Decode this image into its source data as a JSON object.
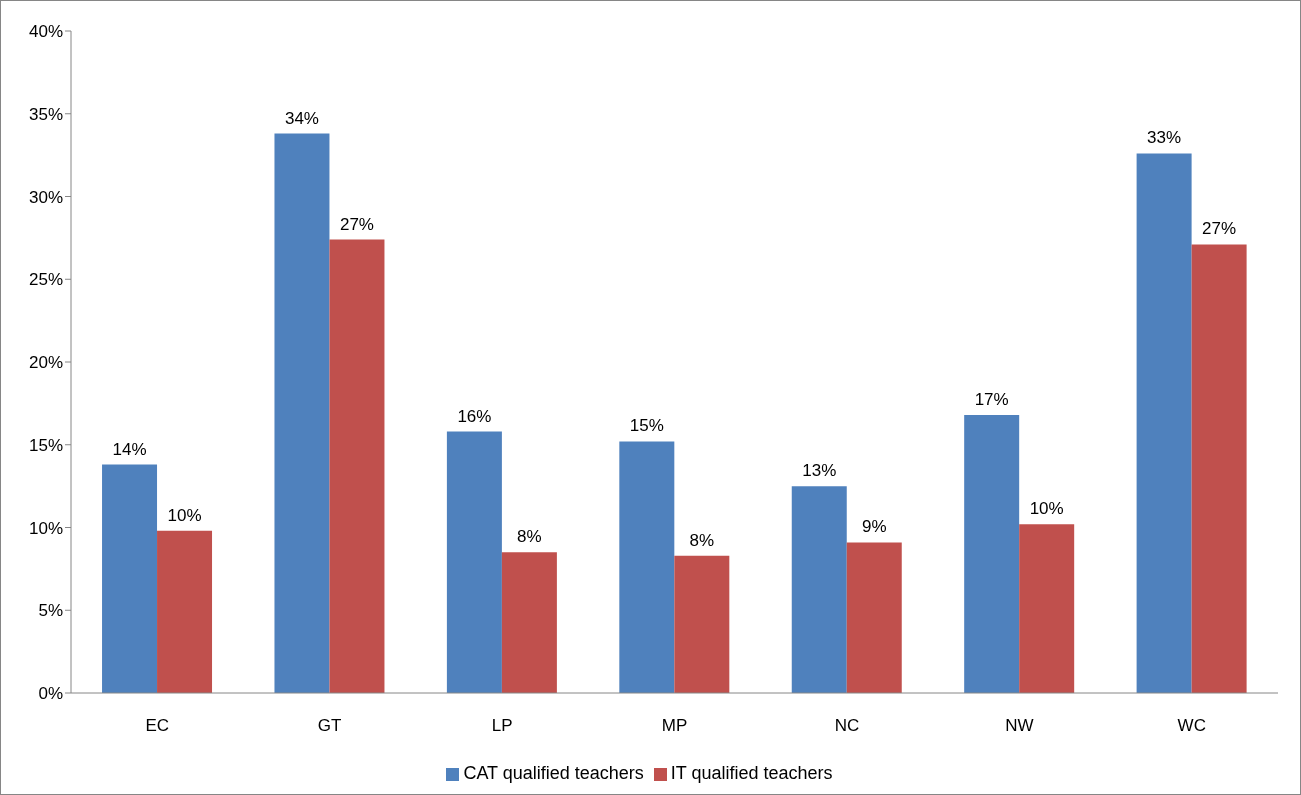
{
  "chart_data": {
    "type": "bar",
    "categories": [
      "EC",
      "GT",
      "LP",
      "MP",
      "NC",
      "NW",
      "WC"
    ],
    "series": [
      {
        "name": "CAT qualified teachers",
        "color": "#4f81bd",
        "values": [
          13.8,
          33.8,
          15.8,
          15.2,
          12.5,
          16.8,
          32.6
        ],
        "value_labels": [
          "14%",
          "34%",
          "16%",
          "15%",
          "13%",
          "17%",
          "33%"
        ]
      },
      {
        "name": "IT qualified teachers",
        "color": "#c0504d",
        "values": [
          9.8,
          27.4,
          8.5,
          8.3,
          9.1,
          10.2,
          27.1
        ],
        "value_labels": [
          "10%",
          "27%",
          "8%",
          "8%",
          "9%",
          "10%",
          "27%"
        ]
      }
    ],
    "ylim": [
      0,
      40
    ],
    "yticks": [
      {
        "value": 0,
        "label": "0%"
      },
      {
        "value": 5,
        "label": "5%"
      },
      {
        "value": 10,
        "label": "10%"
      },
      {
        "value": 15,
        "label": "15%"
      },
      {
        "value": 20,
        "label": "20%"
      },
      {
        "value": 25,
        "label": "25%"
      },
      {
        "value": 30,
        "label": "30%"
      },
      {
        "value": 35,
        "label": "35%"
      },
      {
        "value": 40,
        "label": "40%"
      }
    ],
    "grid": false,
    "legend": "bottom"
  }
}
